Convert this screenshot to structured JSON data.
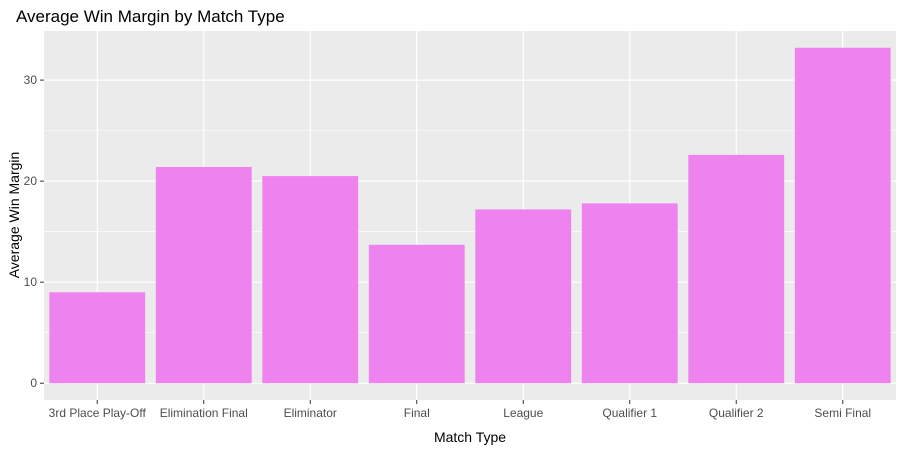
{
  "chart_data": {
    "type": "bar",
    "title": "Average Win Margin by Match Type",
    "xlabel": "Match Type",
    "ylabel": "Average Win Margin",
    "categories": [
      "3rd Place Play-Off",
      "Elimination Final",
      "Eliminator",
      "Final",
      "League",
      "Qualifier 1",
      "Qualifier 2",
      "Semi Final"
    ],
    "values": [
      9.0,
      21.4,
      20.5,
      13.7,
      17.2,
      17.8,
      22.6,
      33.2
    ],
    "ylim": [
      -1.66,
      34.86
    ],
    "yticks": [
      0,
      10,
      20,
      30
    ],
    "ytick_labels": [
      "0",
      "10",
      "20",
      "30"
    ],
    "grid": true,
    "colors": {
      "bar": "#ee82ee",
      "panel": "#ebebeb",
      "grid": "#ffffff",
      "tick": "#333333",
      "text": "#000000",
      "tick_text": "#4d4d4d"
    }
  }
}
